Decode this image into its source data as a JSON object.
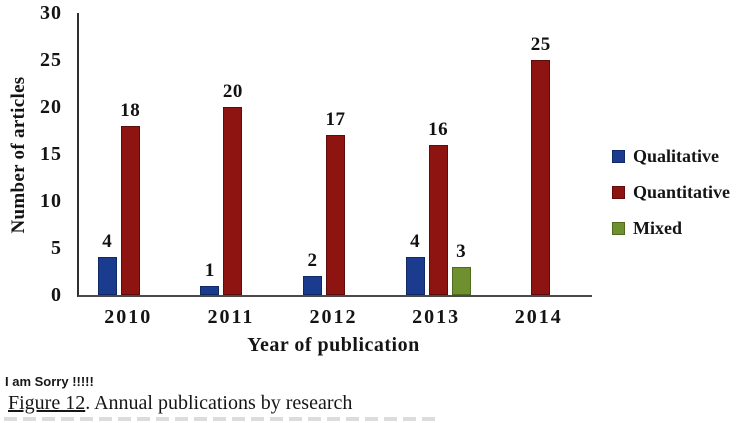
{
  "chart_data": {
    "type": "bar",
    "title": "",
    "categories": [
      "2010",
      "2011",
      "2012",
      "2013",
      "2014"
    ],
    "series": [
      {
        "name": "Qualitative",
        "color": "#1b3b8e",
        "edge": "#102a66",
        "values": [
          4,
          1,
          2,
          4,
          null
        ]
      },
      {
        "name": "Quantitative",
        "color": "#8e1412",
        "edge": "#5e0d0c",
        "values": [
          18,
          20,
          17,
          16,
          25
        ]
      },
      {
        "name": "Mixed",
        "color": "#6f902e",
        "edge": "#4e6a1e",
        "values": [
          null,
          null,
          null,
          3,
          null
        ]
      }
    ],
    "xlabel": "Year of publication",
    "ylabel": "Number of articles",
    "ylim": [
      0,
      30
    ],
    "yticks": [
      0,
      5,
      10,
      15,
      20,
      25,
      30
    ],
    "grid": false,
    "legend_position": "right",
    "data_labels": true
  },
  "caption": {
    "note": "I am Sorry !!!!!",
    "figure_label": "Figure 12",
    "figure_text": ". Annual publications by research"
  }
}
